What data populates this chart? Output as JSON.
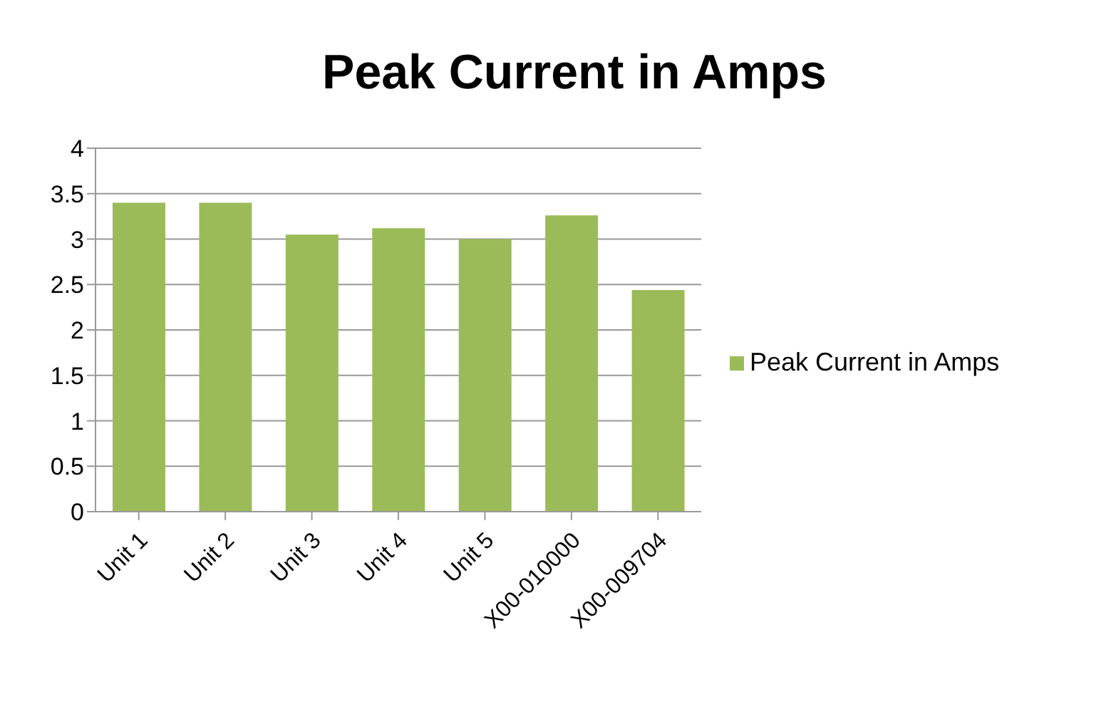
{
  "chart_data": {
    "type": "bar",
    "title": "Peak Current in Amps",
    "categories": [
      "Unit 1",
      "Unit 2",
      "Unit 3",
      "Unit 4",
      "Unit 5",
      "X00-010000",
      "X00-009704"
    ],
    "series": [
      {
        "name": "Peak Current in Amps",
        "color": "#9bbb59",
        "values": [
          3.4,
          3.4,
          3.05,
          3.12,
          3.0,
          3.26,
          2.44
        ]
      }
    ],
    "ylim": [
      0,
      4
    ],
    "yticks": [
      0,
      0.5,
      1,
      1.5,
      2,
      2.5,
      3,
      3.5,
      4
    ],
    "grid": "y",
    "legend": "right"
  }
}
